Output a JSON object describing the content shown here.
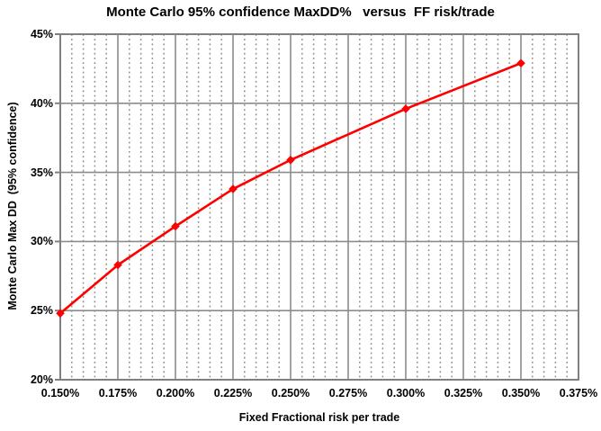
{
  "chart_data": {
    "type": "line",
    "title": "Monte Carlo 95% confidence MaxDD%   versus  FF risk/trade",
    "xlabel": "Fixed Fractional risk per trade",
    "ylabel": "Monte Carlo Max DD  (95% confidence)",
    "series": [
      {
        "x": [
          0.15,
          0.175,
          0.2,
          0.225,
          0.25,
          0.3,
          0.35
        ],
        "y": [
          24.8,
          28.3,
          31.1,
          33.8,
          35.9,
          39.6,
          42.9
        ],
        "color": "#FF0000",
        "marker": "diamond",
        "line_width": 2.6
      }
    ],
    "xlim": [
      0.15,
      0.375
    ],
    "ylim": [
      20,
      45
    ],
    "xticks": [
      0.15,
      0.175,
      0.2,
      0.225,
      0.25,
      0.275,
      0.3,
      0.325,
      0.35,
      0.375
    ],
    "xtick_labels": [
      "0.150%",
      "0.175%",
      "0.200%",
      "0.225%",
      "0.250%",
      "0.275%",
      "0.300%",
      "0.325%",
      "0.350%",
      "0.375%"
    ],
    "yticks": [
      20,
      25,
      30,
      35,
      40,
      45
    ],
    "ytick_labels": [
      "20%",
      "25%",
      "30%",
      "35%",
      "40%",
      "45%"
    ],
    "x_minor_step": 0.005,
    "grid": {
      "major_color": "#8C8C8C",
      "minor_color": "#8C8C8C",
      "frame_color": "#808080",
      "minor_style": "dotted",
      "major_style": "solid",
      "horizontal_minor": false
    },
    "legend": "none",
    "background": "#FFFFFF"
  }
}
